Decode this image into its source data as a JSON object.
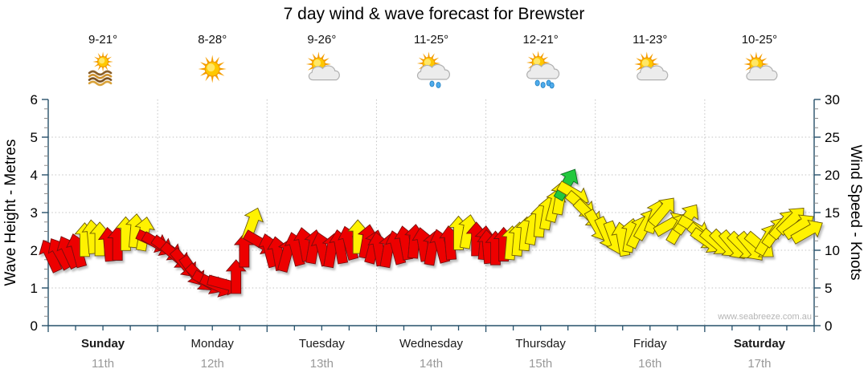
{
  "title": "7 day wind & wave forecast for Brewster",
  "watermark": "www.seabreeze.com.au",
  "days": [
    {
      "name": "Sunday",
      "date": "11th",
      "temp": "9-21°",
      "icon": "sun-water",
      "bold": true
    },
    {
      "name": "Monday",
      "date": "12th",
      "temp": "8-28°",
      "icon": "sunny",
      "bold": false
    },
    {
      "name": "Tuesday",
      "date": "13th",
      "temp": "9-26°",
      "icon": "sun-cloud",
      "bold": false
    },
    {
      "name": "Wednesday",
      "date": "14th",
      "temp": "11-25°",
      "icon": "sun-cloud-rain-2",
      "bold": false
    },
    {
      "name": "Thursday",
      "date": "15th",
      "temp": "12-21°",
      "icon": "sun-cloud-rain-4",
      "bold": false
    },
    {
      "name": "Friday",
      "date": "16th",
      "temp": "11-23°",
      "icon": "sun-cloud",
      "bold": false
    },
    {
      "name": "Saturday",
      "date": "17th",
      "temp": "10-25°",
      "icon": "sun-cloud",
      "bold": true
    }
  ],
  "chart_data": {
    "type": "wind-arrow-timeline",
    "title": "7 day wind & wave forecast for Brewster",
    "x_axis": {
      "range_hours": [
        0,
        168
      ],
      "tick_every_hours": 6,
      "day_boundaries_every_hours": 24,
      "day_labels": [
        "Sunday",
        "Monday",
        "Tuesday",
        "Wednesday",
        "Thursday",
        "Friday",
        "Saturday"
      ]
    },
    "y_left": {
      "label": "Wave Height - Metres",
      "range": [
        0,
        6
      ],
      "major_ticks": [
        0,
        1,
        2,
        3,
        4,
        5,
        6
      ],
      "minor_step": 0.25
    },
    "y_right": {
      "label": "Wind Speed - Knots",
      "range": [
        0,
        30
      ],
      "major_ticks": [
        0,
        5,
        10,
        15,
        20,
        25,
        30
      ],
      "minor_step": 1.25
    },
    "grid": {
      "horizontal_at_knots": [
        5,
        10,
        15,
        20,
        25
      ],
      "vertical_at_day_boundaries": true,
      "style": "dotted"
    },
    "legend_colors": {
      "r": "#ED0000",
      "y": "#FFF200",
      "g": "#21C83C"
    },
    "arrows_format": [
      "hour_offset",
      "wind_speed_knots",
      "direction_deg_cw_from_up",
      "color_key"
    ],
    "arrows": [
      [
        0.5,
        9.3,
        -25,
        "r"
      ],
      [
        2.5,
        9.6,
        -30,
        "r"
      ],
      [
        4.4,
        9.8,
        -25,
        "r"
      ],
      [
        6.4,
        10,
        -15,
        "r"
      ],
      [
        8,
        11.4,
        0,
        "y"
      ],
      [
        9.7,
        11.8,
        -5,
        "y"
      ],
      [
        11.3,
        11.5,
        0,
        "y"
      ],
      [
        13.3,
        10.8,
        -5,
        "r"
      ],
      [
        15.2,
        10.9,
        0,
        "r"
      ],
      [
        17,
        12.2,
        0,
        "y"
      ],
      [
        19.1,
        12.6,
        5,
        "y"
      ],
      [
        21,
        12.2,
        10,
        "y"
      ],
      [
        23,
        11.2,
        115,
        "r"
      ],
      [
        24.2,
        10.8,
        120,
        "r"
      ],
      [
        26.2,
        10.2,
        125,
        "r"
      ],
      [
        28.1,
        9.2,
        130,
        "r"
      ],
      [
        29.9,
        8.2,
        140,
        "r"
      ],
      [
        31.7,
        7.2,
        145,
        "r"
      ],
      [
        33.4,
        6.3,
        135,
        "r"
      ],
      [
        35.2,
        5.7,
        120,
        "r"
      ],
      [
        37,
        5.3,
        115,
        "r"
      ],
      [
        38.7,
        5.5,
        105,
        "r"
      ],
      [
        41.2,
        6.5,
        0,
        "r"
      ],
      [
        43,
        10,
        0,
        "r"
      ],
      [
        44.7,
        13.5,
        20,
        "y"
      ],
      [
        46.5,
        11,
        120,
        "r"
      ],
      [
        48.5,
        10,
        -15,
        "r"
      ],
      [
        50.4,
        9.6,
        -10,
        "r"
      ],
      [
        52.3,
        9.4,
        15,
        "r"
      ],
      [
        54.3,
        10.2,
        -15,
        "r"
      ],
      [
        56.2,
        10.8,
        -10,
        "r"
      ],
      [
        58.2,
        10.5,
        10,
        "r"
      ],
      [
        60.1,
        10.2,
        -15,
        "r"
      ],
      [
        62.1,
        10,
        10,
        "r"
      ],
      [
        64,
        10.5,
        -10,
        "r"
      ],
      [
        66,
        11,
        -15,
        "r"
      ],
      [
        67.9,
        11.8,
        0,
        "y"
      ],
      [
        69.9,
        11.2,
        10,
        "r"
      ],
      [
        71.4,
        10.5,
        15,
        "r"
      ],
      [
        72.5,
        10.2,
        -10,
        "r"
      ],
      [
        74.5,
        10,
        10,
        "r"
      ],
      [
        76.4,
        10.4,
        -15,
        "r"
      ],
      [
        78.3,
        11,
        -10,
        "r"
      ],
      [
        80.3,
        11.2,
        5,
        "r"
      ],
      [
        82.2,
        10.8,
        -10,
        "r"
      ],
      [
        84.2,
        10.3,
        10,
        "r"
      ],
      [
        86.1,
        10.6,
        -15,
        "r"
      ],
      [
        88.1,
        11,
        -5,
        "r"
      ],
      [
        90,
        12.3,
        0,
        "y"
      ],
      [
        92,
        12.5,
        10,
        "y"
      ],
      [
        93.9,
        11.5,
        0,
        "r"
      ],
      [
        95.7,
        11,
        5,
        "r"
      ],
      [
        96.4,
        10.5,
        -5,
        "r"
      ],
      [
        98.1,
        10.3,
        0,
        "r"
      ],
      [
        99.9,
        10.8,
        0,
        "r"
      ],
      [
        101.5,
        11,
        5,
        "y"
      ],
      [
        103.1,
        11.5,
        5,
        "y"
      ],
      [
        104.7,
        12.2,
        5,
        "y"
      ],
      [
        106.3,
        13,
        10,
        "y"
      ],
      [
        107.9,
        14,
        5,
        "y"
      ],
      [
        109.5,
        15,
        10,
        "y"
      ],
      [
        111.1,
        16,
        15,
        "y"
      ],
      [
        112.3,
        17,
        10,
        "y"
      ],
      [
        113.7,
        18.8,
        30,
        "g"
      ],
      [
        115.3,
        17.5,
        120,
        "y"
      ],
      [
        116.9,
        16,
        130,
        "y"
      ],
      [
        118.5,
        14.8,
        135,
        "y"
      ],
      [
        120.4,
        13.2,
        150,
        "y"
      ],
      [
        122.4,
        12.2,
        155,
        "y"
      ],
      [
        124.1,
        11.6,
        160,
        "y"
      ],
      [
        125.9,
        11.5,
        -10,
        "y"
      ],
      [
        127.7,
        12,
        10,
        "y"
      ],
      [
        129.4,
        12.5,
        25,
        "y"
      ],
      [
        131.2,
        13.5,
        30,
        "y"
      ],
      [
        133,
        14.5,
        20,
        "y"
      ],
      [
        134.8,
        15.2,
        40,
        "y"
      ],
      [
        136.5,
        13.5,
        60,
        "y"
      ],
      [
        138.3,
        13,
        30,
        "y"
      ],
      [
        140.1,
        14.2,
        35,
        "y"
      ],
      [
        141.8,
        13,
        120,
        "y"
      ],
      [
        143.6,
        11.8,
        130,
        "y"
      ],
      [
        144.5,
        11.2,
        125,
        "y"
      ],
      [
        146.4,
        11,
        130,
        "y"
      ],
      [
        148.4,
        10.8,
        135,
        "y"
      ],
      [
        150.3,
        10.6,
        140,
        "y"
      ],
      [
        152.3,
        10.5,
        135,
        "y"
      ],
      [
        154.2,
        10.4,
        140,
        "y"
      ],
      [
        156.2,
        10.6,
        130,
        "y"
      ],
      [
        157.7,
        11.5,
        30,
        "y"
      ],
      [
        159.5,
        12.5,
        35,
        "y"
      ],
      [
        161.3,
        13.5,
        40,
        "y"
      ],
      [
        163.1,
        14,
        45,
        "y"
      ],
      [
        164.8,
        13.2,
        55,
        "y"
      ],
      [
        166.6,
        12.5,
        60,
        "y"
      ]
    ]
  }
}
